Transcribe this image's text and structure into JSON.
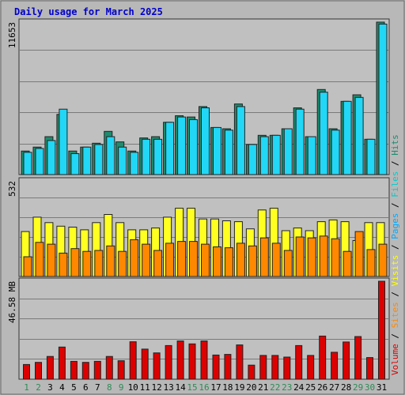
{
  "chart_data": {
    "type": "bar",
    "title": "Daily usage for March 2025",
    "categories": [
      "1",
      "2",
      "3",
      "4",
      "5",
      "6",
      "7",
      "8",
      "9",
      "10",
      "11",
      "12",
      "13",
      "14",
      "15",
      "16",
      "17",
      "18",
      "19",
      "20",
      "21",
      "22",
      "23",
      "24",
      "25",
      "26",
      "27",
      "28",
      "29",
      "30",
      "31"
    ],
    "weekend_days": [
      "1",
      "2",
      "8",
      "9",
      "15",
      "16",
      "22",
      "23",
      "29",
      "30"
    ],
    "grid": true,
    "panels": [
      {
        "ylabel": "11653",
        "ymax": 11653,
        "series": [
          {
            "name": "Hits",
            "color": "#1e8c6e",
            "values": [
              1800,
              2100,
              2900,
              4600,
              1800,
              2100,
              2400,
              3300,
              2500,
              1800,
              2800,
              2900,
              4000,
              4500,
              4400,
              5200,
              3600,
              3500,
              5400,
              2300,
              3000,
              3000,
              3500,
              5100,
              2900,
              6500,
              3500,
              5600,
              6100,
              2700,
              11653
            ]
          },
          {
            "name": "Files",
            "color": "#22d7f5",
            "values": [
              1700,
              2000,
              2600,
              5000,
              1600,
              2100,
              2300,
              2900,
              2100,
              1700,
              2700,
              2700,
              4000,
              4400,
              4200,
              5100,
              3600,
              3400,
              5200,
              2300,
              2900,
              3000,
              3500,
              5000,
              2900,
              6300,
              3400,
              5600,
              5900,
              2700,
              11500
            ]
          }
        ]
      },
      {
        "ylabel": "532",
        "ymax": 532,
        "series": [
          {
            "name": "Pages",
            "color": "#ffff22",
            "values": [
              250,
              330,
              300,
              280,
              275,
              260,
              300,
              345,
              300,
              260,
              260,
              270,
              330,
              380,
              380,
              320,
              320,
              310,
              305,
              265,
              370,
              380,
              255,
              270,
              255,
              305,
              315,
              305,
              200,
              300,
              300
            ]
          },
          {
            "name": "Visits",
            "color": "#ff8800",
            "values": [
              110,
              190,
              180,
              130,
              155,
              140,
              145,
              170,
              140,
              205,
              180,
              145,
              185,
              195,
              195,
              180,
              165,
              160,
              185,
              170,
              215,
              185,
              145,
              220,
              215,
              225,
              210,
              140,
              250,
              150,
              180
            ]
          }
        ]
      },
      {
        "ylabel": "46.58 MB",
        "ymax": 46.58,
        "series": [
          {
            "name": "Volume",
            "color": "#dd0000",
            "values": [
              7.0,
              8.0,
              10.8,
              15.3,
              8.5,
              8.0,
              8.5,
              10.8,
              8.8,
              17.8,
              14.3,
              12.5,
              16.0,
              18.2,
              16.8,
              18.2,
              11.5,
              11.8,
              16.3,
              6.7,
              11.3,
              11.3,
              10.5,
              16.0,
              11.3,
              20.5,
              12.8,
              17.7,
              20.3,
              10.3,
              46.58
            ]
          }
        ]
      }
    ],
    "side_legend": [
      {
        "name": "Volume",
        "color": "#dd0000"
      },
      {
        "name": "Sites",
        "color": "#ff8800"
      },
      {
        "name": "Visits",
        "color": "#ffff00"
      },
      {
        "name": "Pages",
        "color": "#00aaff"
      },
      {
        "name": "Files",
        "color": "#00cccc"
      },
      {
        "name": "Hits",
        "color": "#1e8c6e"
      }
    ]
  }
}
